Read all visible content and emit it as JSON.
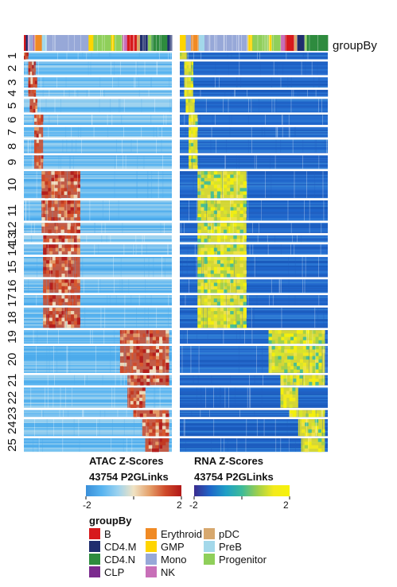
{
  "chart_data": {
    "type": "heatmap",
    "annotation_label": "groupBy",
    "row_clusters": [
      "1",
      "2",
      "3",
      "4",
      "5",
      "6",
      "7",
      "8",
      "9",
      "10",
      "11",
      "12",
      "13",
      "14",
      "15",
      "16",
      "17",
      "18",
      "19",
      "20",
      "21",
      "22",
      "23",
      "24",
      "25"
    ],
    "cluster_sizes": [
      2,
      4,
      3,
      2,
      4,
      3,
      3,
      4,
      4,
      8,
      6,
      3,
      2,
      3,
      6,
      4,
      3,
      6,
      4,
      8,
      3,
      6,
      2,
      5,
      4
    ],
    "atac": {
      "title": "ATAC Z-Scores",
      "subtitle": "43754 P2GLinks",
      "scale_min": "-2",
      "scale_max": "2",
      "colors": [
        "#3a8fd9",
        "#58b4f0",
        "#9bd2ef",
        "#f0e3c4",
        "#e5a06a",
        "#cf4a2a",
        "#b21818"
      ]
    },
    "rna": {
      "title": "RNA Z-Scores",
      "subtitle": "43754 P2GLinks",
      "scale_min": "-2",
      "scale_max": "2",
      "colors": [
        "#3b2c8f",
        "#1f66c9",
        "#1f9fc6",
        "#3dbb9a",
        "#9fcf4c",
        "#f3ea1d",
        "#f6f20a"
      ]
    },
    "legend": {
      "title": "groupBy",
      "items": [
        {
          "label": "B",
          "color": "#d7191c"
        },
        {
          "label": "CD4.M",
          "color": "#1f2e6e"
        },
        {
          "label": "CD4.N",
          "color": "#2e8b3e"
        },
        {
          "label": "CLP",
          "color": "#7b2a8e"
        },
        {
          "label": "Erythroid",
          "color": "#f08a24"
        },
        {
          "label": "GMP",
          "color": "#ffd500"
        },
        {
          "label": "Mono",
          "color": "#97a8d8"
        },
        {
          "label": "NK",
          "color": "#c86fb8"
        },
        {
          "label": "pDC",
          "color": "#d7a86e"
        },
        {
          "label": "PreB",
          "color": "#a3d8ea"
        },
        {
          "label": "Progenitor",
          "color": "#8fcf5a"
        }
      ]
    }
  }
}
